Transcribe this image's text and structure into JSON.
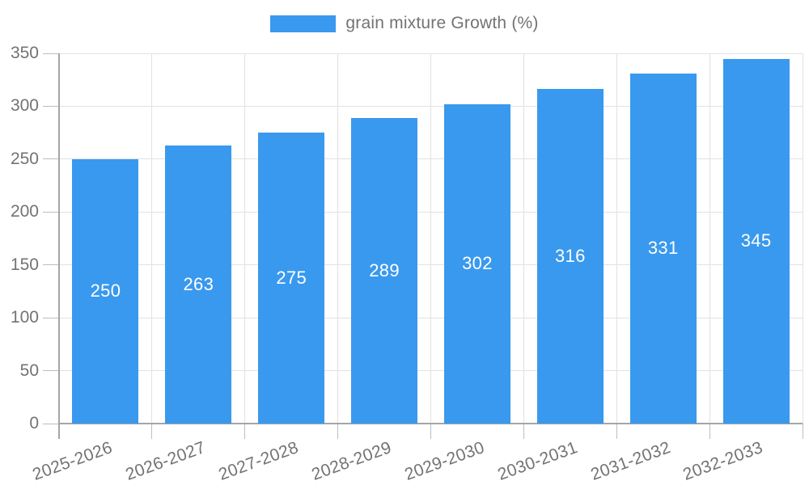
{
  "chart_data": {
    "type": "bar",
    "title": "",
    "legend": {
      "label": "grain mixture Growth (%)",
      "position": "top"
    },
    "categories": [
      "2025-2026",
      "2026-2027",
      "2027-2028",
      "2028-2029",
      "2029-2030",
      "2030-2031",
      "2031-2032",
      "2032-2033"
    ],
    "values": [
      250,
      263,
      275,
      289,
      302,
      316,
      331,
      345
    ],
    "value_labels_shown": true,
    "xlabel": "",
    "ylabel": "",
    "ylim": [
      0,
      350
    ],
    "yticks": [
      0,
      50,
      100,
      150,
      200,
      250,
      300,
      350
    ],
    "grid": true,
    "x_label_rotation_deg": -20,
    "colors": {
      "bar": "#3999ee",
      "value_label": "#ffffff",
      "axis_text": "#737373",
      "grid": "#e2e2e2",
      "tick": "#bdbdbd",
      "axis_line": "#a5a5a5",
      "background": "#ffffff"
    }
  }
}
